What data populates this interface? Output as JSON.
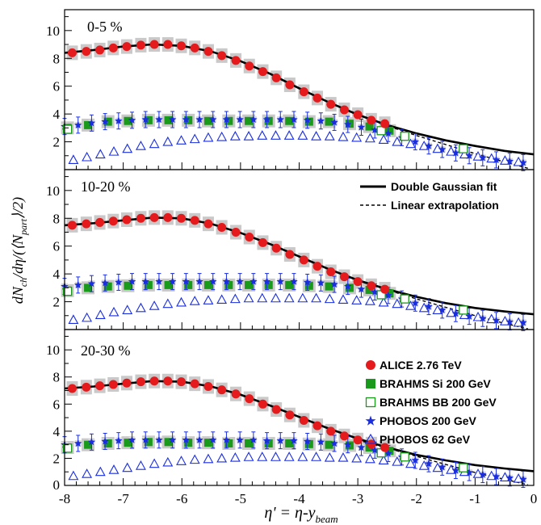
{
  "chart_data": {
    "type": "scatter",
    "xlabel": "η' = η-y",
    "xlabel_sub": "beam",
    "ylabel": "dN",
    "ylabel_sub1": "ch",
    "ylabel_mid": "/dη/(⟨N",
    "ylabel_sub2": "part",
    "ylabel_end": "⟩/2)",
    "xlim": [
      -8,
      0
    ],
    "ylim": [
      0,
      11.5
    ],
    "x_ticks": [
      -8,
      -7,
      -6,
      -5,
      -4,
      -3,
      -2,
      -1,
      0
    ],
    "y_ticks": [
      2,
      4,
      6,
      8,
      10
    ],
    "panels": [
      {
        "label": "0-5 %",
        "alice": {
          "x": [
            -7.87,
            -7.63,
            -7.4,
            -7.17,
            -6.94,
            -6.7,
            -6.47,
            -6.24,
            -6.01,
            -5.78,
            -5.55,
            -5.32,
            -5.08,
            -4.85,
            -4.62,
            -4.39,
            -4.16,
            -3.92,
            -3.69,
            -3.46,
            -3.23,
            -3.0,
            -2.77,
            -2.54
          ],
          "y": [
            8.4,
            8.5,
            8.6,
            8.75,
            8.85,
            8.95,
            9.0,
            9.0,
            8.9,
            8.75,
            8.5,
            8.2,
            7.85,
            7.45,
            7.05,
            6.6,
            6.1,
            5.6,
            5.15,
            4.7,
            4.3,
            3.95,
            3.55,
            3.3
          ]
        },
        "brahms_si": {
          "x": [
            -7.95,
            -7.6,
            -7.26,
            -6.92,
            -6.57,
            -6.23,
            -5.89,
            -5.55,
            -5.2,
            -4.86,
            -4.52,
            -4.17,
            -3.83,
            -3.49,
            -3.14,
            -2.8,
            -2.46
          ],
          "y": [
            3.0,
            3.2,
            3.45,
            3.5,
            3.55,
            3.55,
            3.55,
            3.5,
            3.5,
            3.5,
            3.5,
            3.5,
            3.45,
            3.45,
            3.3,
            3.1,
            2.8
          ]
        },
        "brahms_bb": {
          "x": [
            -7.95,
            -2.6,
            -2.2,
            -1.2
          ],
          "y": [
            2.9,
            2.8,
            2.4,
            1.5
          ]
        },
        "phobos200": {
          "x": [
            -8.0,
            -7.77,
            -7.54,
            -7.31,
            -7.08,
            -6.85,
            -6.62,
            -6.39,
            -6.16,
            -5.93,
            -5.7,
            -5.47,
            -5.24,
            -5.01,
            -4.78,
            -4.55,
            -4.32,
            -4.09,
            -3.86,
            -3.63,
            -3.4,
            -3.17,
            -2.94,
            -2.71,
            -2.48,
            -2.25,
            -2.02,
            -1.79,
            -1.56,
            -1.33,
            -1.1,
            -0.87,
            -0.64,
            -0.41,
            -0.18
          ],
          "y": [
            3.1,
            3.2,
            3.35,
            3.45,
            3.5,
            3.55,
            3.6,
            3.6,
            3.6,
            3.6,
            3.6,
            3.6,
            3.6,
            3.6,
            3.6,
            3.6,
            3.6,
            3.6,
            3.55,
            3.5,
            3.4,
            3.25,
            3.05,
            2.85,
            2.6,
            2.3,
            2.0,
            1.7,
            1.45,
            1.2,
            1.0,
            0.85,
            0.7,
            0.6,
            0.5
          ]
        },
        "phobos62": {
          "x": [
            -7.85,
            -7.62,
            -7.39,
            -7.16,
            -6.93,
            -6.7,
            -6.47,
            -6.24,
            -6.01,
            -5.78,
            -5.55,
            -5.32,
            -5.09,
            -4.86,
            -4.63,
            -4.4,
            -4.17,
            -3.94,
            -3.71,
            -3.48,
            -3.25,
            -3.02,
            -2.79,
            -2.56,
            -2.33,
            -2.1,
            -1.87,
            -1.64,
            -1.41,
            -1.18,
            -0.95,
            -0.72,
            -0.49,
            -0.26
          ],
          "y": [
            0.7,
            0.9,
            1.1,
            1.3,
            1.5,
            1.7,
            1.85,
            2.0,
            2.1,
            2.2,
            2.3,
            2.35,
            2.4,
            2.4,
            2.45,
            2.45,
            2.45,
            2.45,
            2.4,
            2.4,
            2.35,
            2.3,
            2.25,
            2.15,
            2.0,
            1.85,
            1.7,
            1.5,
            1.3,
            1.1,
            0.95,
            0.8,
            0.65,
            0.55
          ]
        },
        "double_gauss": {
          "x": [
            -8,
            -7.5,
            -7,
            -6.5,
            -6,
            -5.5,
            -5,
            -4.5,
            -4,
            -3.5,
            -3,
            -2.5,
            -2,
            -1.5,
            -1,
            -0.5,
            0
          ],
          "y": [
            8.4,
            8.6,
            8.85,
            9.0,
            8.9,
            8.5,
            7.8,
            6.9,
            5.85,
            4.85,
            3.95,
            3.2,
            2.6,
            2.1,
            1.7,
            1.35,
            1.1
          ]
        },
        "linear_extrap": {
          "x": [
            -3.0,
            -2.5,
            -2.0,
            -1.5,
            -1.0,
            -0.5,
            -0.1
          ],
          "y": [
            3.95,
            3.15,
            2.45,
            1.8,
            1.15,
            0.55,
            0.1
          ]
        }
      },
      {
        "label": "10-20 %",
        "alice": {
          "x": [
            -7.87,
            -7.63,
            -7.4,
            -7.17,
            -6.94,
            -6.7,
            -6.47,
            -6.24,
            -6.01,
            -5.78,
            -5.55,
            -5.32,
            -5.08,
            -4.85,
            -4.62,
            -4.39,
            -4.16,
            -3.92,
            -3.69,
            -3.46,
            -3.23,
            -3.0,
            -2.77,
            -2.54
          ],
          "y": [
            7.5,
            7.6,
            7.7,
            7.8,
            7.9,
            8.0,
            8.05,
            8.05,
            8.0,
            7.85,
            7.6,
            7.35,
            7.0,
            6.65,
            6.25,
            5.85,
            5.4,
            5.0,
            4.55,
            4.15,
            3.8,
            3.45,
            3.15,
            2.9
          ]
        },
        "brahms_si": {
          "x": [
            -7.95,
            -7.6,
            -7.26,
            -6.92,
            -6.57,
            -6.23,
            -5.89,
            -5.55,
            -5.2,
            -4.86,
            -4.52,
            -4.17,
            -3.83,
            -3.49,
            -3.14,
            -2.8,
            -2.46
          ],
          "y": [
            2.8,
            3.0,
            3.1,
            3.15,
            3.2,
            3.2,
            3.2,
            3.2,
            3.2,
            3.2,
            3.2,
            3.2,
            3.15,
            3.1,
            3.0,
            2.85,
            2.6
          ]
        },
        "brahms_bb": {
          "x": [
            -7.95,
            -2.6,
            -2.2,
            -1.2
          ],
          "y": [
            2.75,
            2.5,
            2.2,
            1.4
          ]
        },
        "phobos200": {
          "x": [
            -8.0,
            -7.77,
            -7.54,
            -7.31,
            -7.08,
            -6.85,
            -6.62,
            -6.39,
            -6.16,
            -5.93,
            -5.7,
            -5.47,
            -5.24,
            -5.01,
            -4.78,
            -4.55,
            -4.32,
            -4.09,
            -3.86,
            -3.63,
            -3.4,
            -3.17,
            -2.94,
            -2.71,
            -2.48,
            -2.25,
            -2.02,
            -1.79,
            -1.56,
            -1.33,
            -1.1,
            -0.87,
            -0.64,
            -0.41,
            -0.18
          ],
          "y": [
            3.1,
            3.2,
            3.3,
            3.35,
            3.4,
            3.45,
            3.45,
            3.45,
            3.45,
            3.45,
            3.45,
            3.45,
            3.45,
            3.45,
            3.45,
            3.45,
            3.45,
            3.45,
            3.4,
            3.35,
            3.25,
            3.1,
            2.9,
            2.7,
            2.45,
            2.2,
            1.9,
            1.65,
            1.4,
            1.15,
            0.95,
            0.8,
            0.65,
            0.55,
            0.5
          ]
        },
        "phobos62": {
          "x": [
            -7.85,
            -7.62,
            -7.39,
            -7.16,
            -6.93,
            -6.7,
            -6.47,
            -6.24,
            -6.01,
            -5.78,
            -5.55,
            -5.32,
            -5.09,
            -4.86,
            -4.63,
            -4.4,
            -4.17,
            -3.94,
            -3.71,
            -3.48,
            -3.25,
            -3.02,
            -2.79,
            -2.56,
            -2.33,
            -2.1,
            -1.87,
            -1.64,
            -1.41,
            -1.18,
            -0.95,
            -0.72,
            -0.49,
            -0.26
          ],
          "y": [
            0.7,
            0.85,
            1.05,
            1.25,
            1.4,
            1.55,
            1.7,
            1.85,
            1.95,
            2.05,
            2.1,
            2.15,
            2.2,
            2.25,
            2.25,
            2.25,
            2.25,
            2.25,
            2.25,
            2.2,
            2.15,
            2.1,
            2.05,
            1.95,
            1.85,
            1.7,
            1.55,
            1.4,
            1.2,
            1.05,
            0.9,
            0.75,
            0.6,
            0.5
          ]
        },
        "double_gauss": {
          "x": [
            -8,
            -7.5,
            -7,
            -6.5,
            -6,
            -5.5,
            -5,
            -4.5,
            -4,
            -3.5,
            -3,
            -2.5,
            -2,
            -1.5,
            -1,
            -0.5,
            0
          ],
          "y": [
            7.5,
            7.65,
            7.85,
            8.05,
            8.0,
            7.6,
            6.95,
            6.15,
            5.25,
            4.35,
            3.55,
            2.9,
            2.35,
            1.9,
            1.55,
            1.3,
            1.1
          ]
        },
        "linear_extrap": {
          "x": [
            -3.0,
            -2.5,
            -2.0,
            -1.5,
            -1.0,
            -0.5,
            -0.1
          ],
          "y": [
            3.5,
            2.85,
            2.2,
            1.6,
            1.0,
            0.45,
            0.05
          ]
        }
      },
      {
        "label": "20-30 %",
        "alice": {
          "x": [
            -7.87,
            -7.63,
            -7.4,
            -7.17,
            -6.94,
            -6.7,
            -6.47,
            -6.24,
            -6.01,
            -5.78,
            -5.55,
            -5.32,
            -5.08,
            -4.85,
            -4.62,
            -4.39,
            -4.16,
            -3.92,
            -3.69,
            -3.46,
            -3.23,
            -3.0,
            -2.77,
            -2.54
          ],
          "y": [
            7.15,
            7.25,
            7.35,
            7.45,
            7.55,
            7.65,
            7.7,
            7.7,
            7.65,
            7.5,
            7.3,
            7.05,
            6.75,
            6.4,
            6.0,
            5.6,
            5.2,
            4.8,
            4.4,
            4.0,
            3.65,
            3.35,
            3.05,
            2.8
          ]
        },
        "brahms_si": {
          "x": [
            -7.95,
            -7.6,
            -7.26,
            -6.92,
            -6.57,
            -6.23,
            -5.89,
            -5.55,
            -5.2,
            -4.86,
            -4.52,
            -4.17,
            -3.83,
            -3.49,
            -3.14,
            -2.8,
            -2.46
          ],
          "y": [
            2.8,
            3.0,
            3.1,
            3.15,
            3.2,
            3.2,
            3.15,
            3.15,
            3.1,
            3.1,
            3.1,
            3.1,
            3.05,
            3.0,
            2.95,
            2.8,
            2.55
          ]
        },
        "brahms_bb": {
          "x": [
            -7.95,
            -2.6,
            -2.2,
            -1.2
          ],
          "y": [
            2.75,
            2.4,
            2.1,
            1.3
          ]
        },
        "phobos200": {
          "x": [
            -8.0,
            -7.77,
            -7.54,
            -7.31,
            -7.08,
            -6.85,
            -6.62,
            -6.39,
            -6.16,
            -5.93,
            -5.7,
            -5.47,
            -5.24,
            -5.01,
            -4.78,
            -4.55,
            -4.32,
            -4.09,
            -3.86,
            -3.63,
            -3.4,
            -3.17,
            -2.94,
            -2.71,
            -2.48,
            -2.25,
            -2.02,
            -1.79,
            -1.56,
            -1.33,
            -1.1,
            -0.87,
            -0.64,
            -0.41,
            -0.18
          ],
          "y": [
            3.0,
            3.1,
            3.2,
            3.25,
            3.3,
            3.35,
            3.35,
            3.35,
            3.35,
            3.35,
            3.35,
            3.35,
            3.35,
            3.35,
            3.35,
            3.3,
            3.3,
            3.3,
            3.25,
            3.2,
            3.1,
            3.0,
            2.8,
            2.6,
            2.35,
            2.1,
            1.85,
            1.6,
            1.35,
            1.1,
            0.95,
            0.8,
            0.65,
            0.55,
            0.45
          ]
        },
        "phobos62": {
          "x": [
            -7.85,
            -7.62,
            -7.39,
            -7.16,
            -6.93,
            -6.7,
            -6.47,
            -6.24,
            -6.01,
            -5.78,
            -5.55,
            -5.32,
            -5.09,
            -4.86,
            -4.63,
            -4.4,
            -4.17,
            -3.94,
            -3.71,
            -3.48,
            -3.25,
            -3.02,
            -2.79,
            -2.56,
            -2.33,
            -2.1,
            -1.87,
            -1.64,
            -1.41,
            -1.18,
            -0.95,
            -0.72,
            -0.49,
            -0.26
          ],
          "y": [
            0.7,
            0.85,
            1.0,
            1.15,
            1.3,
            1.45,
            1.6,
            1.7,
            1.8,
            1.9,
            1.95,
            2.0,
            2.05,
            2.1,
            2.1,
            2.1,
            2.1,
            2.1,
            2.1,
            2.05,
            2.05,
            2.0,
            1.95,
            1.85,
            1.75,
            1.6,
            1.45,
            1.3,
            1.15,
            1.0,
            0.85,
            0.7,
            0.6,
            0.5
          ]
        },
        "double_gauss": {
          "x": [
            -8,
            -7.5,
            -7,
            -6.5,
            -6,
            -5.5,
            -5,
            -4.5,
            -4,
            -3.5,
            -3,
            -2.5,
            -2,
            -1.5,
            -1,
            -0.5,
            0
          ],
          "y": [
            7.15,
            7.3,
            7.5,
            7.7,
            7.65,
            7.3,
            6.7,
            5.9,
            5.05,
            4.2,
            3.45,
            2.8,
            2.25,
            1.85,
            1.5,
            1.25,
            1.05
          ]
        },
        "linear_extrap": {
          "x": [
            -3.0,
            -2.5,
            -2.0,
            -1.5,
            -1.0,
            -0.5,
            -0.1
          ],
          "y": [
            3.35,
            2.75,
            2.15,
            1.55,
            0.95,
            0.45,
            0.05
          ]
        }
      }
    ],
    "legend_lines": [
      {
        "label": "Double Gaussian fit",
        "style": "solid"
      },
      {
        "label": "Linear extrapolation",
        "style": "dashed"
      }
    ],
    "legend_markers": [
      {
        "label": "ALICE 2.76 TeV",
        "marker": "circle",
        "color": "#e41a1c"
      },
      {
        "label": "BRAHMS Si 200 GeV",
        "marker": "square",
        "color": "#1a9a1a"
      },
      {
        "label": "BRAHMS BB 200 GeV",
        "marker": "open-square",
        "color": "#1a9a1a"
      },
      {
        "label": "PHOBOS 200 GeV",
        "marker": "star",
        "color": "#1a2ee0"
      },
      {
        "label": "PHOBOS 62 GeV",
        "marker": "open-triangle",
        "color": "#1a2ee0"
      }
    ]
  }
}
